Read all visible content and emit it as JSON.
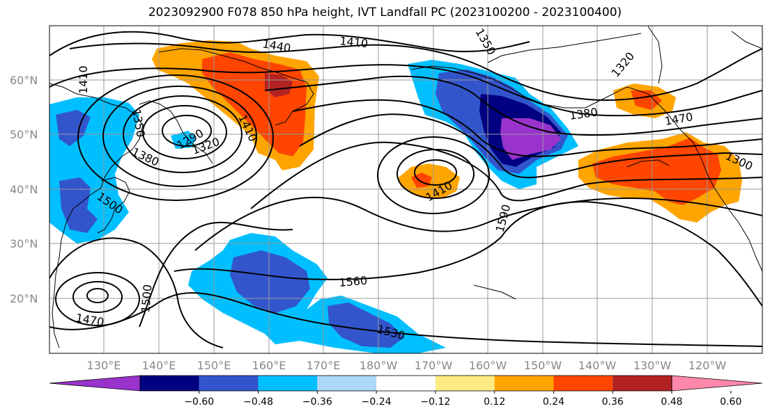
{
  "title": "2023092900 F078 850 hPa height, IVT Landfall PC (2023100200 - 2023100400)",
  "map": {
    "lon_labels": [
      "130°E",
      "140°E",
      "150°E",
      "160°E",
      "170°E",
      "180°W",
      "170°W",
      "160°W",
      "150°W",
      "140°W",
      "130°W",
      "120°W"
    ],
    "lat_labels": [
      "60°N",
      "50°N",
      "40°N",
      "30°N",
      "20°N"
    ],
    "contour_labels": [
      {
        "text": "1440",
        "name": "contour-label-1440"
      },
      {
        "text": "1410",
        "name": "contour-label-1410-north"
      },
      {
        "text": "1350",
        "name": "contour-label-1350-north"
      },
      {
        "text": "1320",
        "name": "contour-label-1320-ne"
      },
      {
        "text": "1410",
        "name": "contour-label-1410-west"
      },
      {
        "text": "1350",
        "name": "contour-label-1350-west"
      },
      {
        "text": "1290",
        "name": "contour-label-1290"
      },
      {
        "text": "1320",
        "name": "contour-label-1320-low"
      },
      {
        "text": "1380",
        "name": "contour-label-1380-west"
      },
      {
        "text": "1410",
        "name": "contour-label-1410-low"
      },
      {
        "text": "1380",
        "name": "contour-label-1380-east"
      },
      {
        "text": "1470",
        "name": "contour-label-1470-east"
      },
      {
        "text": "1300",
        "name": "contour-label-1300"
      },
      {
        "text": "1500",
        "name": "contour-label-1500-west"
      },
      {
        "text": "1410",
        "name": "contour-label-1410-mid"
      },
      {
        "text": "1590",
        "name": "contour-label-1590"
      },
      {
        "text": "1560",
        "name": "contour-label-1560"
      },
      {
        "text": "1500",
        "name": "contour-label-1500-south"
      },
      {
        "text": "1470",
        "name": "contour-label-1470-south"
      },
      {
        "text": "1530",
        "name": "contour-label-1530"
      }
    ]
  },
  "colorbar": {
    "ticks": [
      "−0.60",
      "−0.48",
      "−0.36",
      "−0.24",
      "−0.12",
      "0.12",
      "0.24",
      "0.36",
      "0.48",
      "0.60"
    ],
    "colors": [
      "#9933cc",
      "#000080",
      "#3355cc",
      "#00bfff",
      "#add8f7",
      "#ffffff",
      "#ffeb84",
      "#ffa500",
      "#ff4500",
      "#b22222",
      "#ff88aa"
    ]
  }
}
